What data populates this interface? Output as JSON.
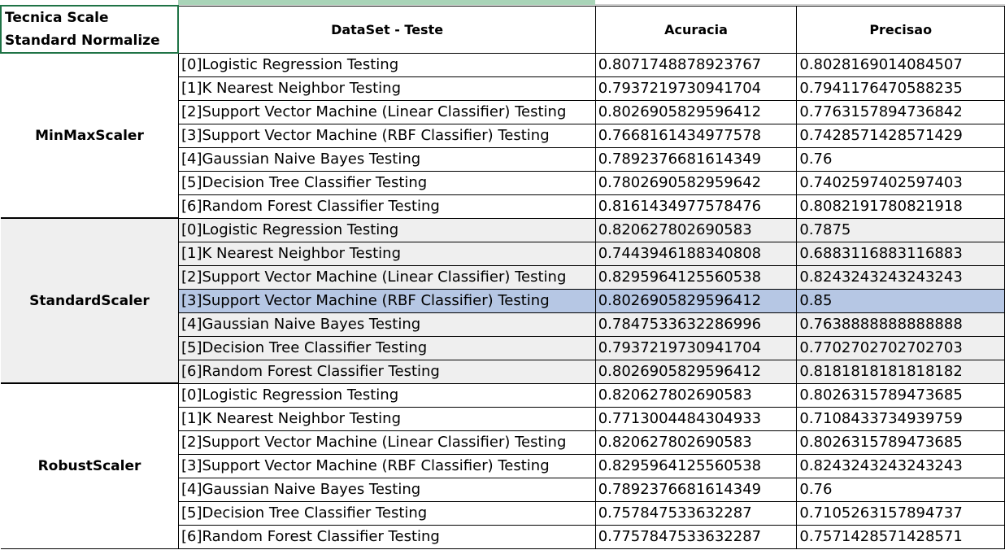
{
  "header": {
    "corner": "Tecnica Scale Standard Normalize",
    "dataset": "DataSet - Teste",
    "accuracy": "Acuracia",
    "precision": "Precisao"
  },
  "groups": [
    {
      "name": "MinMaxScaler",
      "rows": [
        {
          "model": "[0]Logistic Regression Testing",
          "accuracy": "0.8071748878923767",
          "precision": "0.8028169014084507"
        },
        {
          "model": "[1]K Nearest Neighbor Testing",
          "accuracy": "0.7937219730941704",
          "precision": "0.7941176470588235"
        },
        {
          "model": "[2]Support Vector Machine (Linear Classifier) Testing",
          "accuracy": "0.8026905829596412",
          "precision": "0.7763157894736842"
        },
        {
          "model": "[3]Support Vector Machine (RBF Classifier) Testing",
          "accuracy": "0.7668161434977578",
          "precision": "0.7428571428571429"
        },
        {
          "model": "[4]Gaussian Naive Bayes Testing",
          "accuracy": "0.7892376681614349",
          "precision": "0.76"
        },
        {
          "model": "[5]Decision Tree Classifier Testing",
          "accuracy": "0.7802690582959642",
          "precision": "0.7402597402597403"
        },
        {
          "model": "[6]Random Forest Classifier Testing",
          "accuracy": "0.8161434977578476",
          "precision": "0.8082191780821918"
        }
      ]
    },
    {
      "name": "StandardScaler",
      "rows": [
        {
          "model": "[0]Logistic Regression Testing",
          "accuracy": "0.820627802690583",
          "precision": "0.7875"
        },
        {
          "model": "[1]K Nearest Neighbor Testing",
          "accuracy": "0.7443946188340808",
          "precision": "0.6883116883116883"
        },
        {
          "model": "[2]Support Vector Machine (Linear Classifier) Testing",
          "accuracy": "0.8295964125560538",
          "precision": "0.8243243243243243"
        },
        {
          "model": "[3]Support Vector Machine (RBF Classifier) Testing",
          "accuracy": "0.8026905829596412",
          "precision": "0.85"
        },
        {
          "model": "[4]Gaussian Naive Bayes Testing",
          "accuracy": "0.7847533632286996",
          "precision": "0.7638888888888888"
        },
        {
          "model": "[5]Decision Tree Classifier Testing",
          "accuracy": "0.7937219730941704",
          "precision": "0.7702702702702703"
        },
        {
          "model": "[6]Random Forest Classifier Testing",
          "accuracy": "0.8026905829596412",
          "precision": "0.8181818181818182"
        }
      ]
    },
    {
      "name": "RobustScaler",
      "rows": [
        {
          "model": "[0]Logistic Regression Testing",
          "accuracy": "0.820627802690583",
          "precision": "0.8026315789473685"
        },
        {
          "model": "[1]K Nearest Neighbor Testing",
          "accuracy": "0.7713004484304933",
          "precision": "0.7108433734939759"
        },
        {
          "model": "[2]Support Vector Machine (Linear Classifier) Testing",
          "accuracy": "0.820627802690583",
          "precision": "0.8026315789473685"
        },
        {
          "model": "[3]Support Vector Machine (RBF Classifier) Testing",
          "accuracy": "0.8295964125560538",
          "precision": "0.8243243243243243"
        },
        {
          "model": "[4]Gaussian Naive Bayes Testing",
          "accuracy": "0.7892376681614349",
          "precision": "0.76"
        },
        {
          "model": "[5]Decision Tree Classifier Testing",
          "accuracy": "0.757847533632287",
          "precision": "0.7105263157894737"
        },
        {
          "model": "[6]Random Forest Classifier Testing",
          "accuracy": "0.7757847533632287",
          "precision": "0.7571428571428571"
        }
      ]
    }
  ],
  "selection": {
    "group": 1,
    "row": 3
  },
  "colors": {
    "selection": "#b6c7e4",
    "shaded_group": "#efefef",
    "active_cell_border": "#1f7346"
  }
}
